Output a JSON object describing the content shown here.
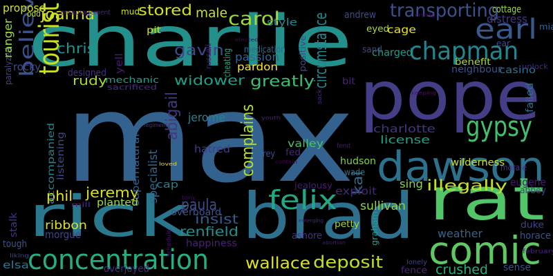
{
  "words": [
    {
      "text": "max",
      "color": "#32628d"
    },
    {
      "text": "charlie",
      "color": "#24908c"
    },
    {
      "text": "pope",
      "color": "#433e85"
    },
    {
      "text": "brad",
      "color": "#2d718e"
    },
    {
      "text": "rick",
      "color": "#2a788e"
    },
    {
      "text": "dawson",
      "color": "#2c728e"
    },
    {
      "text": "rat",
      "color": "#52c569"
    },
    {
      "text": "comic",
      "color": "#5ec962"
    },
    {
      "text": "concentration",
      "color": "#27ad81"
    },
    {
      "text": "chapman",
      "color": "#25858e"
    },
    {
      "text": "earl",
      "color": "#38598c"
    },
    {
      "text": "tourist",
      "color": "#c8e020"
    },
    {
      "text": "believed",
      "color": "#3b518b"
    },
    {
      "text": "gypsy",
      "color": "#44bf70"
    },
    {
      "text": "felix",
      "color": "#22a884"
    },
    {
      "text": "transporting",
      "color": "#3b528b"
    },
    {
      "text": "circumstance",
      "color": "#24868e"
    },
    {
      "text": "carol",
      "color": "#9fda3a"
    },
    {
      "text": "joanna",
      "color": "#d5e21a"
    },
    {
      "text": "stored",
      "color": "#d2e21b"
    },
    {
      "text": "chris",
      "color": "#1f948c"
    },
    {
      "text": "gavin",
      "color": "#3f4889"
    },
    {
      "text": "greatly",
      "color": "#3dbc74"
    },
    {
      "text": "widower",
      "color": "#1fa187"
    },
    {
      "text": "rudy",
      "color": "#a2da37"
    },
    {
      "text": "abigail",
      "color": "#453781"
    },
    {
      "text": "jerome",
      "color": "#26828e"
    },
    {
      "text": "complains",
      "color": "#b2dd2d"
    },
    {
      "text": "charlotte",
      "color": "#46337e"
    },
    {
      "text": "license",
      "color": "#1f9e89"
    },
    {
      "text": "wilderness",
      "color": "#cae11f"
    },
    {
      "text": "illegally",
      "color": "#c5e021"
    },
    {
      "text": "jeremy",
      "color": "#d8e219"
    },
    {
      "text": "phil",
      "color": "#e5e419"
    },
    {
      "text": "paula",
      "color": "#3e4c8a"
    },
    {
      "text": "insist",
      "color": "#38588c"
    },
    {
      "text": "renfield",
      "color": "#21918c"
    },
    {
      "text": "happiness",
      "color": "#482173"
    },
    {
      "text": "wallace",
      "color": "#dde318"
    },
    {
      "text": "deposit",
      "color": "#c2df23"
    },
    {
      "text": "sullivan",
      "color": "#90d743"
    },
    {
      "text": "kai",
      "color": "#31688e"
    },
    {
      "text": "ribbon",
      "color": "#dde318"
    },
    {
      "text": "morgue",
      "color": "#404588"
    },
    {
      "text": "elsa",
      "color": "#2a788e"
    },
    {
      "text": "exploit",
      "color": "#482677"
    },
    {
      "text": "eugene",
      "color": "#481a6c"
    },
    {
      "text": "abbey",
      "color": "#3e4a89"
    },
    {
      "text": "duke",
      "color": "#404387"
    },
    {
      "text": "horace",
      "color": "#39558c"
    },
    {
      "text": "weather",
      "color": "#33638d"
    },
    {
      "text": "petty",
      "color": "#a0da39"
    },
    {
      "text": "ashore",
      "color": "#46337f"
    },
    {
      "text": "graham",
      "color": "#1fa088"
    },
    {
      "text": "crushed",
      "color": "#26ad81"
    },
    {
      "text": "fence",
      "color": "#482878"
    },
    {
      "text": "sense",
      "color": "#3d4e8a"
    },
    {
      "text": "lonely",
      "color": "#414487"
    },
    {
      "text": "hatred",
      "color": "#423f85"
    },
    {
      "text": "valley",
      "color": "#4ac16d"
    },
    {
      "text": "cap",
      "color": "#287d8e"
    },
    {
      "text": "fed",
      "color": "#482979"
    },
    {
      "text": "rey",
      "color": "#3e4a89"
    },
    {
      "text": "hudson",
      "color": "#7fd34e"
    },
    {
      "text": "wade",
      "color": "#2c728e"
    },
    {
      "text": "jealousy",
      "color": "#481c6e"
    },
    {
      "text": "sing",
      "color": "#8bd646"
    },
    {
      "text": "specialist",
      "color": "#31688e"
    },
    {
      "text": "supernatural",
      "color": "#33638d"
    },
    {
      "text": "accompanied",
      "color": "#25848e"
    },
    {
      "text": "listening",
      "color": "#3e4989"
    },
    {
      "text": "overboard",
      "color": "#3b528b"
    },
    {
      "text": "planted",
      "color": "#a5db36"
    },
    {
      "text": "mill",
      "color": "#46307e"
    },
    {
      "text": "mechanic",
      "color": "#1fa188"
    },
    {
      "text": "sacrificed",
      "color": "#472f7d"
    },
    {
      "text": "pardon",
      "color": "#fde725"
    },
    {
      "text": "passion",
      "color": "#31678e"
    },
    {
      "text": "cheating",
      "color": "#21a685"
    },
    {
      "text": "russell",
      "color": "#481b6d"
    },
    {
      "text": "medication",
      "color": "#30698e"
    },
    {
      "text": "bit",
      "color": "#482576"
    },
    {
      "text": "male",
      "color": "#c8e020"
    },
    {
      "text": "style",
      "color": "#24868e"
    },
    {
      "text": "andrew",
      "color": "#3d4d8a"
    },
    {
      "text": "eyed",
      "color": "#a8db34"
    },
    {
      "text": "cage",
      "color": "#e7e419"
    },
    {
      "text": "charged",
      "color": "#1f9a8a"
    },
    {
      "text": "benefit",
      "color": "#b0dd2f"
    },
    {
      "text": "neighbour",
      "color": "#3a548c"
    },
    {
      "text": "casino",
      "color": "#2c738e"
    },
    {
      "text": "sand",
      "color": "#414287"
    },
    {
      "text": "distress",
      "color": "#453581"
    },
    {
      "text": "cottage",
      "color": "#99d83d"
    },
    {
      "text": "mud",
      "color": "#d0e11c"
    },
    {
      "text": "propose",
      "color": "#d2e21b"
    },
    {
      "text": "paralyzed",
      "color": "#424186"
    },
    {
      "text": "designed",
      "color": "#472e7c"
    },
    {
      "text": "ranger",
      "color": "#9bd93c"
    },
    {
      "text": "odd",
      "color": "#b8de29"
    },
    {
      "text": "rocky",
      "color": "#3e4c8a"
    },
    {
      "text": "pit",
      "color": "#d0e11c"
    },
    {
      "text": "yell",
      "color": "#481b6d"
    },
    {
      "text": "positive",
      "color": "#404688"
    },
    {
      "text": "encouragement",
      "color": "#482576"
    },
    {
      "text": "unlock",
      "color": "#482979"
    },
    {
      "text": "failed",
      "color": "#2d718e"
    },
    {
      "text": "mia",
      "color": "#31678e"
    },
    {
      "text": "ear",
      "color": "#3d4e8a"
    },
    {
      "text": "tough",
      "color": "#3b528b"
    },
    {
      "text": "stalk",
      "color": "#46327e"
    },
    {
      "text": "morale",
      "color": "#453581"
    },
    {
      "text": "february",
      "color": "#482475"
    },
    {
      "text": "overjoyed",
      "color": "#46307e"
    },
    {
      "text": "loved",
      "color": "#ecd91f"
    },
    {
      "text": "schedule",
      "color": "#471063"
    },
    {
      "text": "youth",
      "color": "#482576"
    },
    {
      "text": "sack",
      "color": "#482677"
    },
    {
      "text": "contain",
      "color": "#440154"
    },
    {
      "text": "regiment",
      "color": "#46337e"
    },
    {
      "text": "fend",
      "color": "#48196b"
    },
    {
      "text": "keeping",
      "color": "#471365"
    },
    {
      "text": "elected",
      "color": "#46075a"
    },
    {
      "text": "emerging",
      "color": "#482878"
    },
    {
      "text": "abortion",
      "color": "#481f70"
    },
    {
      "text": "liking",
      "color": "#3f4788"
    },
    {
      "text": "crying",
      "color": "#460b5e"
    },
    {
      "text": "tony",
      "color": "#46085c"
    }
  ]
}
